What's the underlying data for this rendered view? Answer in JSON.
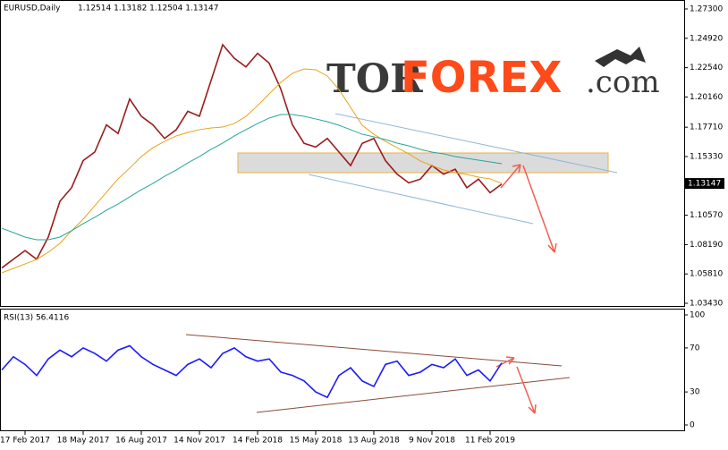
{
  "chart_data": [
    {
      "type": "line",
      "title": "EURUSD,Daily",
      "subtitle": "1.12514 1.13182 1.12504 1.13147",
      "current_price": 1.13147,
      "watermark": {
        "prefix": "TOR",
        "main": "FOREX",
        "suffix": ".com"
      },
      "categories": [
        null,
        null,
        "17 Feb 2017",
        null,
        null,
        null,
        null,
        "18 May 2017",
        null,
        null,
        null,
        null,
        "16 Aug 2017",
        null,
        null,
        null,
        null,
        "14 Nov 2017",
        null,
        null,
        null,
        null,
        "14 Feb 2018",
        null,
        null,
        null,
        null,
        "15 May 2018",
        null,
        null,
        null,
        null,
        "13 Aug 2018",
        null,
        null,
        null,
        null,
        "9 Nov 2018",
        null,
        null,
        null,
        null,
        "11 Feb 2019",
        null
      ],
      "series": [
        {
          "name": "EURUSD",
          "color": "#9b1c1c",
          "values": [
            1.063,
            1.07,
            1.077,
            1.07,
            1.088,
            1.117,
            1.128,
            1.15,
            1.157,
            1.179,
            1.172,
            1.2,
            1.186,
            1.179,
            1.168,
            1.175,
            1.19,
            1.186,
            1.215,
            1.244,
            1.233,
            1.226,
            1.237,
            1.229,
            1.208,
            1.179,
            1.164,
            1.161,
            1.168,
            1.157,
            1.146,
            1.164,
            1.168,
            1.15,
            1.139,
            1.132,
            1.135,
            1.146,
            1.139,
            1.143,
            1.128,
            1.135,
            1.124,
            1.131
          ]
        },
        {
          "name": "MA50",
          "color": "#e8a317",
          "values": [
            1.059,
            1.0626,
            1.0662,
            1.0699,
            1.0757,
            1.0829,
            1.0931,
            1.1025,
            1.1134,
            1.1243,
            1.1352,
            1.1439,
            1.1533,
            1.1605,
            1.1656,
            1.17,
            1.1729,
            1.1751,
            1.1765,
            1.1772,
            1.1801,
            1.1859,
            1.1946,
            1.2041,
            1.2135,
            1.2208,
            1.2244,
            1.2237,
            1.2186,
            1.2077,
            1.1932,
            1.1787,
            1.1714,
            1.1656,
            1.1605,
            1.1555,
            1.1497,
            1.146,
            1.1424,
            1.1402,
            1.1388,
            1.1366,
            1.1352,
            1.1315
          ]
        },
        {
          "name": "MA200",
          "color": "#26a69a",
          "values": [
            1.0952,
            1.0916,
            1.088,
            1.0858,
            1.0858,
            1.088,
            1.0931,
            1.0989,
            1.104,
            1.1098,
            1.1148,
            1.1206,
            1.1264,
            1.1315,
            1.1373,
            1.1424,
            1.1482,
            1.1533,
            1.1591,
            1.1642,
            1.17,
            1.1751,
            1.1801,
            1.1845,
            1.1874,
            1.1874,
            1.1859,
            1.1838,
            1.1816,
            1.1787,
            1.1751,
            1.1714,
            1.1693,
            1.1671,
            1.1642,
            1.162,
            1.1591,
            1.1569,
            1.1555,
            1.1533,
            1.1518,
            1.1504,
            1.1489,
            1.1475
          ]
        }
      ],
      "ylim": [
        1.0343,
        1.273
      ],
      "yticks": [
        {
          "value": 1.273,
          "label": "1.27300"
        },
        {
          "value": 1.2492,
          "label": "1.24920"
        },
        {
          "value": 1.2254,
          "label": "1.22540"
        },
        {
          "value": 1.2016,
          "label": "1.20160"
        },
        {
          "value": 1.1771,
          "label": "1.17710"
        },
        {
          "value": 1.1533,
          "label": "1.15330"
        },
        {
          "value": 1.1057,
          "label": "1.10570"
        },
        {
          "value": 1.0819,
          "label": "1.08190"
        },
        {
          "value": 1.0581,
          "label": "1.05810"
        },
        {
          "value": 1.0343,
          "label": "1.03430"
        }
      ]
    },
    {
      "type": "line",
      "title": "RSI(13) 56.4116",
      "series": [
        {
          "name": "RSI",
          "color": "#1a1aff",
          "values": [
            50,
            62,
            55,
            45,
            60,
            68,
            62,
            70,
            65,
            58,
            68,
            72,
            62,
            55,
            50,
            45,
            55,
            60,
            52,
            65,
            70,
            62,
            58,
            60,
            48,
            45,
            40,
            30,
            25,
            45,
            52,
            40,
            35,
            55,
            58,
            45,
            48,
            55,
            52,
            60,
            45,
            50,
            40,
            56.4
          ]
        }
      ],
      "ylim": [
        0,
        100
      ],
      "yticks": [
        100,
        70,
        30,
        0
      ]
    }
  ]
}
